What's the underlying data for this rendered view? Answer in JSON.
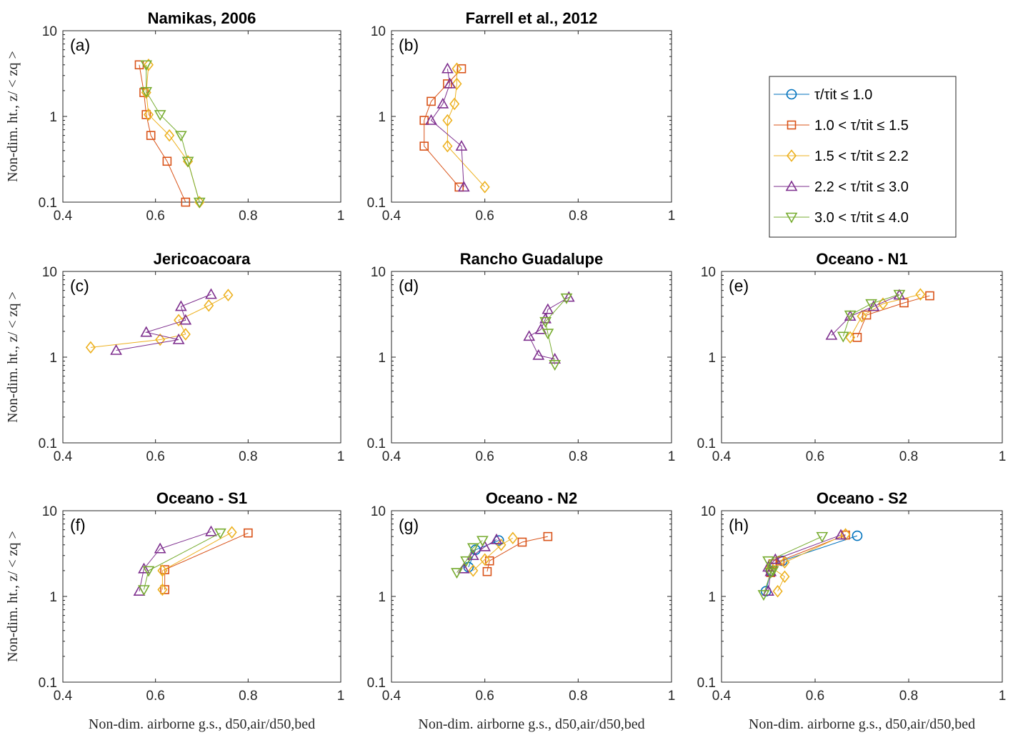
{
  "chart_data": {
    "type": "line",
    "y_scale": "log",
    "xlim": [
      0.4,
      1
    ],
    "ylim": [
      0.1,
      10
    ],
    "x_ticks": [
      "0.4",
      "0.6",
      "0.8",
      "1"
    ],
    "x_ticks_short": [
      "0.4",
      "0.6",
      "0.8",
      "1"
    ],
    "y_ticks": [
      "0.1",
      "1",
      "10"
    ],
    "xlabel": "Non-dim. airborne g.s., d50,air/d50,bed",
    "ylabel": "Non-dim. ht., z/ < zq >",
    "legend": {
      "placement": "upper-right (empty panel)",
      "entries": [
        "τ/τit ≤ 1.0",
        "1.0 < τ/τit ≤ 1.5",
        "1.5 < τ/τit ≤ 2.2",
        "2.2 < τ/τit ≤ 3.0",
        "3.0 < τ/τit ≤ 4.0"
      ]
    },
    "series_styles": [
      {
        "marker": "circle",
        "color": "#0072BD"
      },
      {
        "marker": "square",
        "color": "#D95319"
      },
      {
        "marker": "diamond",
        "color": "#EDB120"
      },
      {
        "marker": "triangle-up",
        "color": "#7E2F8E"
      },
      {
        "marker": "triangle-down",
        "color": "#77AC30"
      }
    ],
    "panels": [
      {
        "label": "(a)",
        "title": "Namikas, 2006",
        "series": [
          {
            "style": 1,
            "points": [
              [
                0.665,
                0.1
              ],
              [
                0.625,
                0.3
              ],
              [
                0.59,
                0.6
              ],
              [
                0.58,
                1.05
              ],
              [
                0.575,
                1.9
              ],
              [
                0.565,
                4.0
              ]
            ]
          },
          {
            "style": 2,
            "points": [
              [
                0.695,
                0.1
              ],
              [
                0.67,
                0.3
              ],
              [
                0.63,
                0.6
              ],
              [
                0.585,
                1.05
              ],
              [
                0.58,
                1.9
              ],
              [
                0.585,
                4.0
              ]
            ]
          },
          {
            "style": 4,
            "points": [
              [
                0.695,
                0.1
              ],
              [
                0.67,
                0.3
              ],
              [
                0.655,
                0.6
              ],
              [
                0.61,
                1.05
              ],
              [
                0.58,
                1.95
              ],
              [
                0.58,
                4.0
              ]
            ]
          }
        ]
      },
      {
        "label": "(b)",
        "title": "Farrell et al., 2012",
        "series": [
          {
            "style": 1,
            "points": [
              [
                0.545,
                0.15
              ],
              [
                0.47,
                0.45
              ],
              [
                0.47,
                0.9
              ],
              [
                0.485,
                1.5
              ],
              [
                0.52,
                2.4
              ],
              [
                0.55,
                3.6
              ]
            ]
          },
          {
            "style": 2,
            "points": [
              [
                0.6,
                0.15
              ],
              [
                0.52,
                0.45
              ],
              [
                0.52,
                0.9
              ],
              [
                0.535,
                1.4
              ],
              [
                0.54,
                2.4
              ],
              [
                0.54,
                3.6
              ]
            ]
          },
          {
            "style": 3,
            "points": [
              [
                0.555,
                0.15
              ],
              [
                0.55,
                0.45
              ],
              [
                0.485,
                0.9
              ],
              [
                0.51,
                1.4
              ],
              [
                0.525,
                2.4
              ],
              [
                0.52,
                3.6
              ]
            ]
          }
        ]
      },
      {
        "label": "",
        "title": "",
        "series": []
      },
      {
        "label": "(c)",
        "title": "Jericoacoara",
        "series": [
          {
            "style": 2,
            "points": [
              [
                0.46,
                1.3
              ],
              [
                0.61,
                1.6
              ],
              [
                0.665,
                1.85
              ],
              [
                0.65,
                2.7
              ],
              [
                0.715,
                4.0
              ],
              [
                0.757,
                5.3
              ]
            ]
          },
          {
            "style": 3,
            "points": [
              [
                0.515,
                1.2
              ],
              [
                0.65,
                1.6
              ],
              [
                0.58,
                1.95
              ],
              [
                0.665,
                2.7
              ],
              [
                0.655,
                3.9
              ],
              [
                0.72,
                5.4
              ]
            ]
          }
        ]
      },
      {
        "label": "(d)",
        "title": "Rancho Guadalupe",
        "series": [
          {
            "style": 3,
            "points": [
              [
                0.75,
                0.95
              ],
              [
                0.715,
                1.05
              ],
              [
                0.695,
                1.75
              ],
              [
                0.72,
                2.1
              ],
              [
                0.73,
                2.8
              ],
              [
                0.735,
                3.6
              ],
              [
                0.78,
                5.0
              ]
            ]
          },
          {
            "style": 4,
            "points": [
              [
                0.75,
                0.82
              ],
              [
                0.735,
                1.9
              ],
              [
                0.73,
                2.6
              ],
              [
                0.775,
                4.9
              ]
            ]
          }
        ]
      },
      {
        "label": "(e)",
        "title": "Oceano - N1",
        "series": [
          {
            "style": 1,
            "points": [
              [
                0.69,
                1.7
              ],
              [
                0.71,
                3.1
              ],
              [
                0.79,
                4.3
              ],
              [
                0.845,
                5.2
              ]
            ]
          },
          {
            "style": 2,
            "points": [
              [
                0.675,
                1.7
              ],
              [
                0.7,
                3.0
              ],
              [
                0.745,
                4.2
              ],
              [
                0.825,
                5.4
              ]
            ]
          },
          {
            "style": 3,
            "points": [
              [
                0.635,
                1.8
              ],
              [
                0.675,
                3.0
              ],
              [
                0.725,
                3.9
              ],
              [
                0.78,
                5.3
              ]
            ]
          },
          {
            "style": 4,
            "points": [
              [
                0.66,
                1.75
              ],
              [
                0.675,
                3.1
              ],
              [
                0.72,
                4.2
              ],
              [
                0.78,
                5.4
              ]
            ]
          }
        ]
      },
      {
        "label": "(f)",
        "title": "Oceano - S1",
        "series": [
          {
            "style": 1,
            "points": [
              [
                0.62,
                1.2
              ],
              [
                0.62,
                2.05
              ],
              [
                0.8,
                5.5
              ]
            ]
          },
          {
            "style": 2,
            "points": [
              [
                0.615,
                1.2
              ],
              [
                0.615,
                2.0
              ],
              [
                0.765,
                5.6
              ]
            ]
          },
          {
            "style": 3,
            "points": [
              [
                0.565,
                1.15
              ],
              [
                0.575,
                2.1
              ],
              [
                0.61,
                3.6
              ],
              [
                0.72,
                5.7
              ]
            ]
          },
          {
            "style": 4,
            "points": [
              [
                0.575,
                1.2
              ],
              [
                0.585,
                2.0
              ],
              [
                0.74,
                5.5
              ]
            ]
          }
        ]
      },
      {
        "label": "(g)",
        "title": "Oceano - N2",
        "series": [
          {
            "style": 0,
            "points": [
              [
                0.565,
                2.2
              ],
              [
                0.58,
                3.5
              ],
              [
                0.63,
                4.5
              ]
            ]
          },
          {
            "style": 1,
            "points": [
              [
                0.605,
                1.95
              ],
              [
                0.61,
                2.6
              ],
              [
                0.68,
                4.3
              ],
              [
                0.735,
                5.0
              ]
            ]
          },
          {
            "style": 2,
            "points": [
              [
                0.575,
                2.0
              ],
              [
                0.6,
                2.7
              ],
              [
                0.635,
                4.0
              ],
              [
                0.66,
                4.8
              ]
            ]
          },
          {
            "style": 3,
            "points": [
              [
                0.555,
                2.1
              ],
              [
                0.575,
                3.0
              ],
              [
                0.6,
                3.8
              ],
              [
                0.625,
                4.6
              ]
            ]
          },
          {
            "style": 4,
            "points": [
              [
                0.54,
                1.9
              ],
              [
                0.56,
                2.6
              ],
              [
                0.575,
                3.7
              ],
              [
                0.595,
                4.5
              ]
            ]
          }
        ]
      },
      {
        "label": "(h)",
        "title": "Oceano - S2",
        "series": [
          {
            "style": 0,
            "points": [
              [
                0.495,
                1.15
              ],
              [
                0.505,
                2.0
              ],
              [
                0.53,
                2.6
              ],
              [
                0.69,
                5.1
              ]
            ]
          },
          {
            "style": 1,
            "points": [
              [
                0.505,
                1.9
              ],
              [
                0.51,
                2.4
              ],
              [
                0.525,
                2.6
              ],
              [
                0.665,
                5.2
              ]
            ]
          },
          {
            "style": 2,
            "points": [
              [
                0.52,
                1.15
              ],
              [
                0.535,
                1.7
              ],
              [
                0.505,
                2.2
              ],
              [
                0.535,
                2.5
              ],
              [
                0.665,
                5.3
              ]
            ]
          },
          {
            "style": 3,
            "points": [
              [
                0.5,
                1.15
              ],
              [
                0.505,
                1.95
              ],
              [
                0.5,
                2.2
              ],
              [
                0.515,
                2.7
              ],
              [
                0.655,
                5.2
              ]
            ]
          },
          {
            "style": 4,
            "points": [
              [
                0.49,
                1.05
              ],
              [
                0.505,
                1.9
              ],
              [
                0.51,
                2.0
              ],
              [
                0.5,
                2.6
              ],
              [
                0.615,
                5.0
              ]
            ]
          }
        ]
      }
    ]
  }
}
